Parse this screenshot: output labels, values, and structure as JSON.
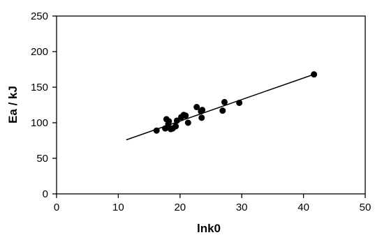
{
  "chart_data": {
    "type": "scatter",
    "title": "",
    "xlabel": "lnk0",
    "ylabel": "Ea / kJ",
    "xlim": [
      0,
      50
    ],
    "ylim": [
      0,
      250
    ],
    "xticks": [
      0,
      10,
      20,
      30,
      40,
      50
    ],
    "yticks": [
      0,
      50,
      100,
      150,
      200,
      250
    ],
    "grid": false,
    "legend": "none",
    "point_color": "#000000",
    "series": [
      {
        "values": [
          {
            "x": 16.2,
            "y": 89
          },
          {
            "x": 17.6,
            "y": 92
          },
          {
            "x": 17.8,
            "y": 105
          },
          {
            "x": 18.1,
            "y": 98
          },
          {
            "x": 18.2,
            "y": 102
          },
          {
            "x": 18.5,
            "y": 91
          },
          {
            "x": 18.8,
            "y": 92
          },
          {
            "x": 19.3,
            "y": 95
          },
          {
            "x": 19.5,
            "y": 103
          },
          {
            "x": 20.2,
            "y": 108
          },
          {
            "x": 20.6,
            "y": 111
          },
          {
            "x": 20.9,
            "y": 110
          },
          {
            "x": 21.3,
            "y": 100
          },
          {
            "x": 22.7,
            "y": 122
          },
          {
            "x": 23.4,
            "y": 116
          },
          {
            "x": 23.6,
            "y": 118
          },
          {
            "x": 23.5,
            "y": 107
          },
          {
            "x": 26.9,
            "y": 117
          },
          {
            "x": 27.2,
            "y": 129
          },
          {
            "x": 29.6,
            "y": 128
          },
          {
            "x": 41.7,
            "y": 168
          }
        ]
      }
    ],
    "trendline": {
      "type": "linear",
      "color": "#000000",
      "points": [
        {
          "x": 11.3,
          "y": 76
        },
        {
          "x": 41.7,
          "y": 168
        }
      ]
    }
  }
}
